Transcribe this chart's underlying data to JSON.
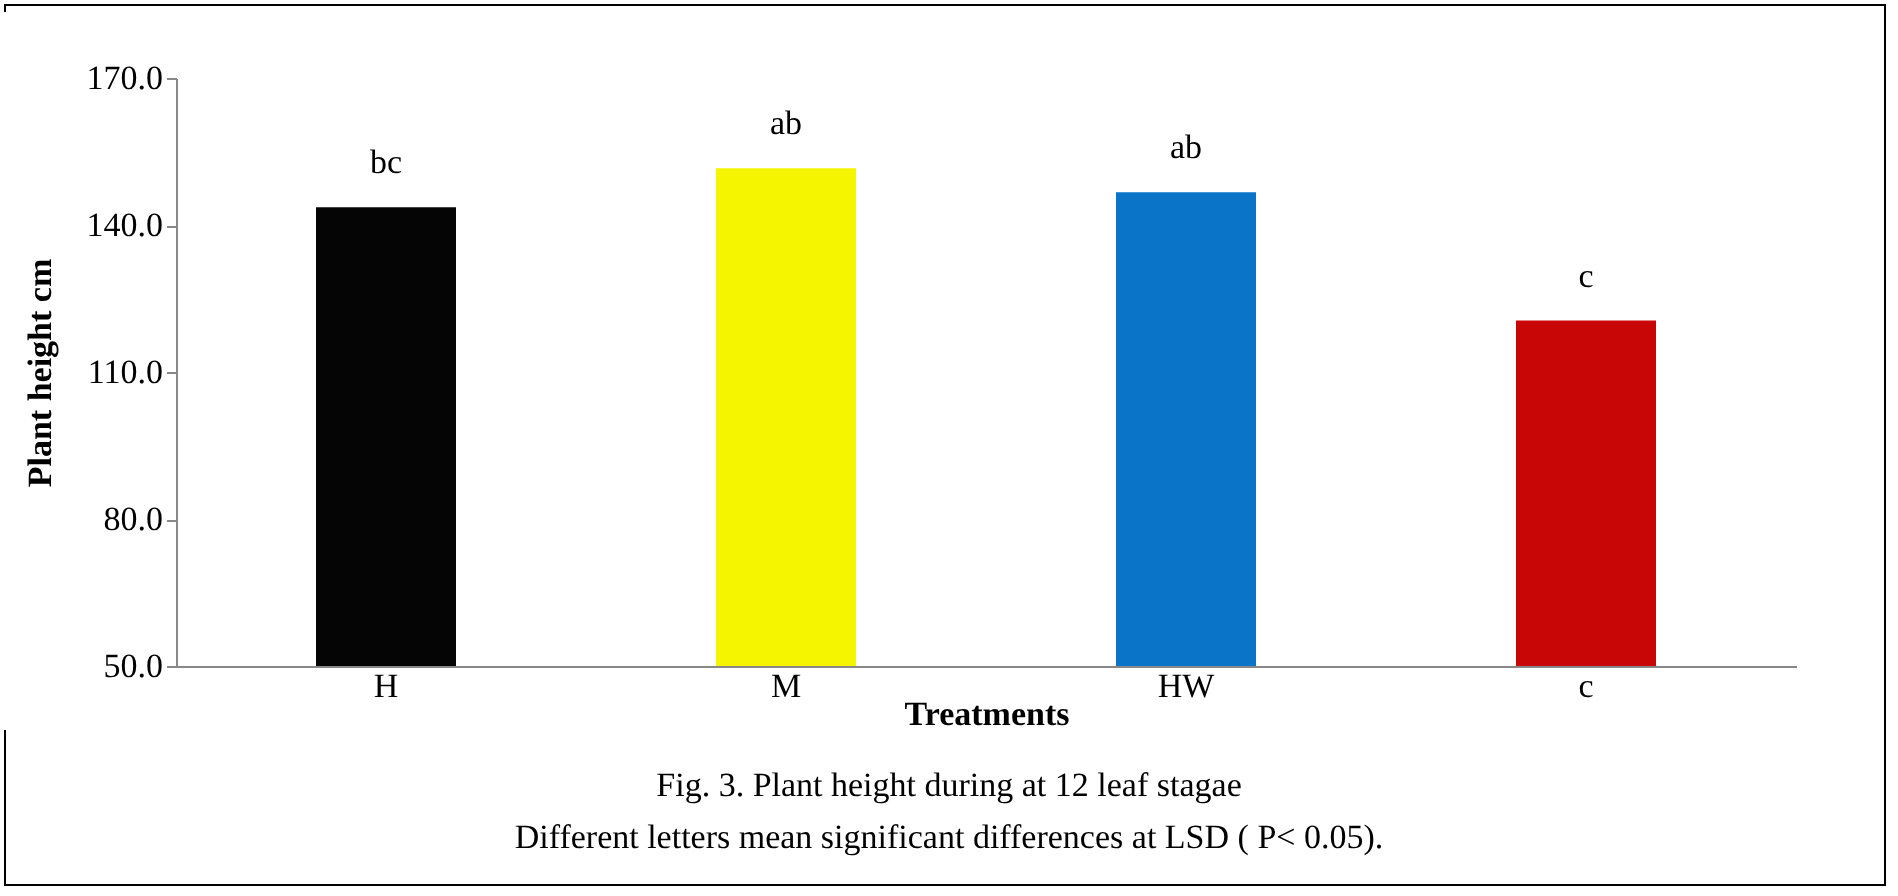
{
  "chart_data": {
    "type": "bar",
    "xlabel": "Treatments",
    "ylabel": "Plant height cm",
    "categories": [
      "H",
      "M",
      "HW",
      "c"
    ],
    "values": [
      143.6,
      151.6,
      146.7,
      120.5
    ],
    "colors": [
      "#050505",
      "#f5f500",
      "#0a74c8",
      "#c80606"
    ],
    "ylim": [
      50,
      170
    ],
    "yticks": [
      {
        "value": 50,
        "label": "50.0"
      },
      {
        "value": 80,
        "label": "80.0"
      },
      {
        "value": 110,
        "label": "110.0"
      },
      {
        "value": 140,
        "label": "140.0"
      },
      {
        "value": 170,
        "label": "170.0"
      }
    ],
    "grid": false,
    "annotations": [
      {
        "text": "bc",
        "x": "H",
        "y": 143.6
      },
      {
        "text": "ab",
        "x": "M",
        "y": 151.6
      },
      {
        "text": "ab",
        "x": "HW",
        "y": 146.7
      },
      {
        "text": "c",
        "x": "c",
        "y": 120.5
      },
      "Fig. 3. Plant height during at 12 leaf stagae",
      "Different letters mean significant differences at LSD ( P< 0.05)."
    ]
  }
}
